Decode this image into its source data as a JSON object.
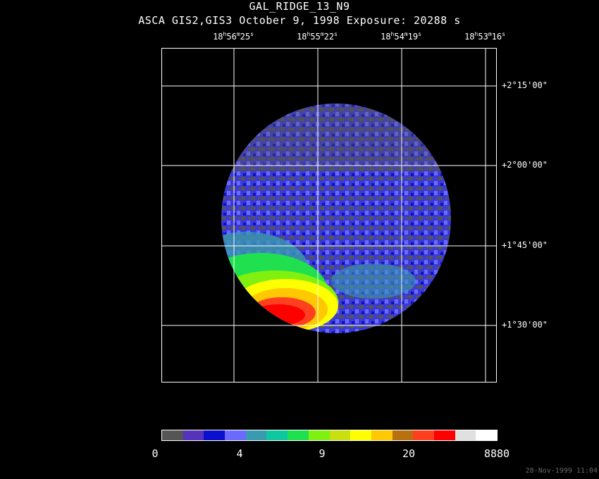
{
  "title": "GAL_RIDGE_13_N9",
  "subtitle": "ASCA GIS2,GIS3 October 9, 1998 Exposure: 20288 s",
  "ra_ticks": [
    {
      "h": "18",
      "m": "56",
      "s": "25"
    },
    {
      "h": "18",
      "m": "55",
      "s": "22"
    },
    {
      "h": "18",
      "m": "54",
      "s": "19"
    },
    {
      "h": "18",
      "m": "53",
      "s": "16"
    }
  ],
  "dec_ticks": [
    "+2°15'00\"",
    "+2°00'00\"",
    "+1°45'00\"",
    "+1°30'00\""
  ],
  "colorbar": {
    "colors": [
      "#555555",
      "#5533bb",
      "#0a10cc",
      "#6a6aff",
      "#3a9ab0",
      "#10c8a0",
      "#20e050",
      "#80f010",
      "#c8e010",
      "#ffff00",
      "#ffc800",
      "#b87010",
      "#ff4020",
      "#ff0000",
      "#e0e0e0",
      "#ffffff"
    ],
    "labels": [
      "0",
      "4",
      "9",
      "20",
      "8880"
    ]
  },
  "timestamp": "28-Nov-1999 11:04"
}
